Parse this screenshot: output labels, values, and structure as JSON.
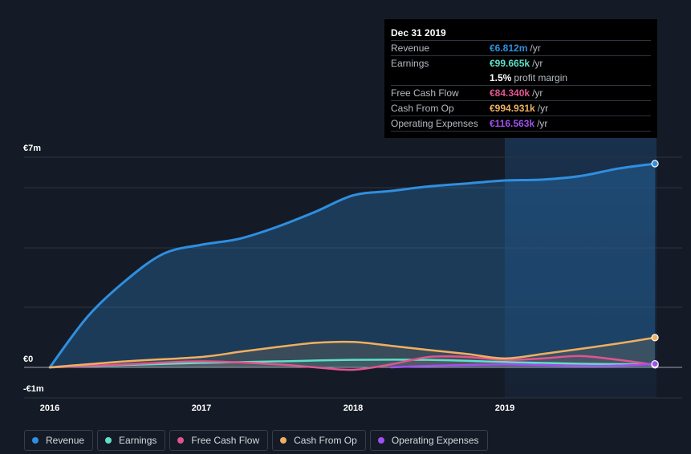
{
  "tooltip": {
    "date": "Dec 31 2019",
    "rows": [
      {
        "label": "Revenue",
        "value": "€6.812m",
        "unit": "/yr",
        "color": "#2f8fe0"
      },
      {
        "label": "Earnings",
        "value": "€99.665k",
        "unit": "/yr",
        "color": "#5fe0c8"
      },
      {
        "label": "",
        "value": "1.5%",
        "unit": "profit margin",
        "color": "#ffffff"
      },
      {
        "label": "Free Cash Flow",
        "value": "€84.340k",
        "unit": "/yr",
        "color": "#e0558f"
      },
      {
        "label": "Cash From Op",
        "value": "€994.931k",
        "unit": "/yr",
        "color": "#f0b060"
      },
      {
        "label": "Operating Expenses",
        "value": "€116.563k",
        "unit": "/yr",
        "color": "#a050f0"
      }
    ]
  },
  "legend": [
    {
      "label": "Revenue",
      "color": "#2f8fe0"
    },
    {
      "label": "Earnings",
      "color": "#5fe0c8"
    },
    {
      "label": "Free Cash Flow",
      "color": "#e0558f"
    },
    {
      "label": "Cash From Op",
      "color": "#f0b060"
    },
    {
      "label": "Operating Expenses",
      "color": "#a050f0"
    }
  ],
  "chart_data": {
    "type": "area",
    "title": "",
    "xlabel": "",
    "ylabel": "",
    "x_ticks": [
      "2016",
      "2017",
      "2018",
      "2019"
    ],
    "y_ticks": [
      "€7m",
      "€0",
      "-€1m"
    ],
    "ylim": [
      -1,
      7
    ],
    "xlim": [
      2016.0,
      2020.0
    ],
    "highlight_start": 2019.0,
    "series": [
      {
        "name": "Revenue",
        "color": "#2f8fe0",
        "x": [
          2016.0,
          2016.25,
          2016.5,
          2016.75,
          2017.0,
          2017.25,
          2017.5,
          2017.75,
          2018.0,
          2018.25,
          2018.5,
          2018.75,
          2019.0,
          2019.25,
          2019.5,
          2019.75,
          2019.99
        ],
        "values": [
          0.0,
          1.7,
          2.9,
          3.8,
          4.1,
          4.3,
          4.7,
          5.2,
          5.75,
          5.9,
          6.05,
          6.15,
          6.25,
          6.28,
          6.4,
          6.65,
          6.812
        ]
      },
      {
        "name": "Earnings",
        "color": "#5fe0c8",
        "x": [
          2016.0,
          2016.5,
          2017.0,
          2017.5,
          2018.0,
          2018.5,
          2019.0,
          2019.5,
          2019.99
        ],
        "values": [
          0.0,
          0.08,
          0.15,
          0.2,
          0.25,
          0.25,
          0.18,
          0.12,
          0.1
        ]
      },
      {
        "name": "Free Cash Flow",
        "color": "#e0558f",
        "x": [
          2016.0,
          2016.5,
          2017.0,
          2017.5,
          2017.75,
          2018.0,
          2018.25,
          2018.5,
          2018.75,
          2019.0,
          2019.25,
          2019.5,
          2019.75,
          2019.99
        ],
        "values": [
          0.0,
          0.1,
          0.2,
          0.1,
          0.0,
          -0.08,
          0.1,
          0.35,
          0.35,
          0.25,
          0.3,
          0.38,
          0.25,
          0.084
        ]
      },
      {
        "name": "Cash From Op",
        "color": "#f0b060",
        "x": [
          2016.0,
          2016.5,
          2017.0,
          2017.25,
          2017.5,
          2017.75,
          2018.0,
          2018.25,
          2018.5,
          2018.75,
          2019.0,
          2019.25,
          2019.5,
          2019.75,
          2019.99
        ],
        "values": [
          0.0,
          0.2,
          0.35,
          0.52,
          0.68,
          0.82,
          0.85,
          0.72,
          0.58,
          0.45,
          0.3,
          0.45,
          0.62,
          0.8,
          0.995
        ]
      },
      {
        "name": "Operating Expenses",
        "color": "#a050f0",
        "x": [
          2018.25,
          2018.5,
          2018.75,
          2019.0,
          2019.25,
          2019.5,
          2019.75,
          2019.99
        ],
        "values": [
          0.0,
          0.05,
          0.08,
          0.1,
          0.08,
          0.05,
          0.06,
          0.117
        ]
      }
    ]
  }
}
